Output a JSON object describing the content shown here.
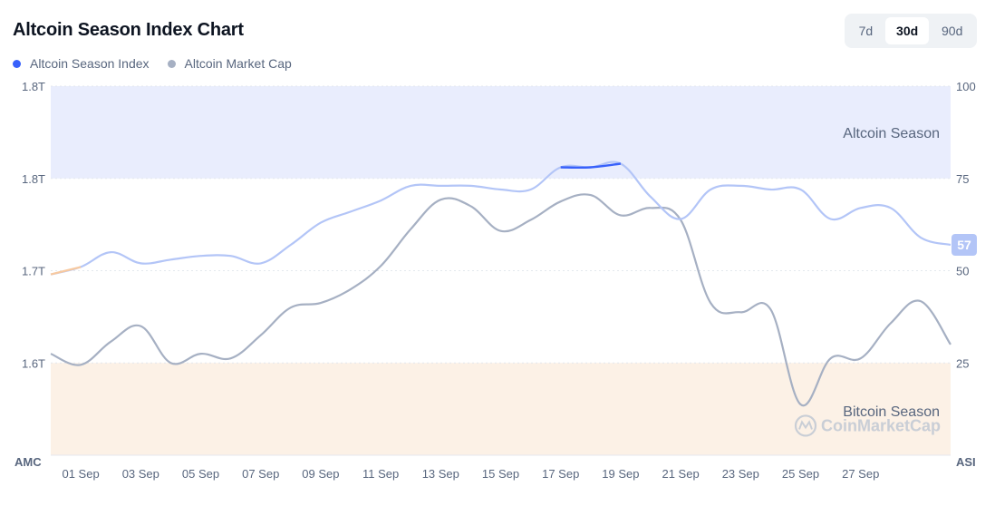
{
  "header": {
    "title": "Altcoin Season Index Chart",
    "range_buttons": [
      {
        "label": "7d",
        "active": false
      },
      {
        "label": "30d",
        "active": true
      },
      {
        "label": "90d",
        "active": false
      }
    ]
  },
  "legend": [
    {
      "label": "Altcoin Season Index",
      "color": "#3861fb"
    },
    {
      "label": "Altcoin Market Cap",
      "color": "#a6b0c3"
    }
  ],
  "watermark": "CoinMarketCap",
  "colors": {
    "altcoin_zone": "#e9edfd",
    "bitcoin_zone": "#fcf1e6",
    "index_line": "#b3c5f7",
    "index_line_active": "#3861fb",
    "index_line_bitcoin": "#f7c9a0",
    "marketcap_line": "#a6b0c3",
    "badge": "#b3c5f7"
  },
  "chart_data": {
    "type": "line",
    "x": [
      "31 Aug",
      "01 Sep",
      "02 Sep",
      "03 Sep",
      "04 Sep",
      "05 Sep",
      "06 Sep",
      "07 Sep",
      "08 Sep",
      "09 Sep",
      "10 Sep",
      "11 Sep",
      "12 Sep",
      "13 Sep",
      "14 Sep",
      "15 Sep",
      "16 Sep",
      "17 Sep",
      "18 Sep",
      "19 Sep",
      "20 Sep",
      "21 Sep",
      "22 Sep",
      "23 Sep",
      "24 Sep",
      "25 Sep",
      "26 Sep",
      "27 Sep",
      "28 Sep",
      "29 Sep",
      "30 Sep"
    ],
    "x_tick_labels": [
      "01 Sep",
      "03 Sep",
      "05 Sep",
      "07 Sep",
      "09 Sep",
      "11 Sep",
      "13 Sep",
      "15 Sep",
      "17 Sep",
      "19 Sep",
      "21 Sep",
      "23 Sep",
      "25 Sep",
      "27 Sep"
    ],
    "series": [
      {
        "name": "Altcoin Season Index",
        "axis": "right",
        "values": [
          49,
          51,
          55,
          52,
          53,
          54,
          54,
          52,
          57,
          63,
          66,
          69,
          73,
          73,
          73,
          72,
          72,
          78,
          78,
          79,
          70,
          64,
          72,
          73,
          72,
          72,
          64,
          67,
          67,
          59,
          57
        ]
      },
      {
        "name": "Altcoin Market Cap",
        "axis": "left",
        "values": [
          1.61,
          1.598,
          1.623,
          1.64,
          1.6,
          1.61,
          1.605,
          1.63,
          1.66,
          1.665,
          1.68,
          1.705,
          1.745,
          1.777,
          1.77,
          1.743,
          1.755,
          1.775,
          1.782,
          1.76,
          1.768,
          1.755,
          1.665,
          1.655,
          1.658,
          1.555,
          1.605,
          1.605,
          1.643,
          1.667,
          1.62
        ]
      }
    ],
    "yleft_ticks": [
      "1.8T",
      "1.8T",
      "1.7T",
      "1.6T"
    ],
    "yleft_range": [
      1.5,
      1.9
    ],
    "yright_ticks": [
      "100",
      "75",
      "50",
      "25"
    ],
    "yright_range": [
      0,
      100
    ],
    "left_axis_label": "AMC",
    "right_axis_label": "ASI",
    "zones": [
      {
        "label": "Altcoin Season",
        "from": 75,
        "to": 100
      },
      {
        "label": "Bitcoin Season",
        "from": 0,
        "to": 25
      }
    ],
    "current_value_badge": "57",
    "grid": true,
    "legend_position": "top-left"
  }
}
